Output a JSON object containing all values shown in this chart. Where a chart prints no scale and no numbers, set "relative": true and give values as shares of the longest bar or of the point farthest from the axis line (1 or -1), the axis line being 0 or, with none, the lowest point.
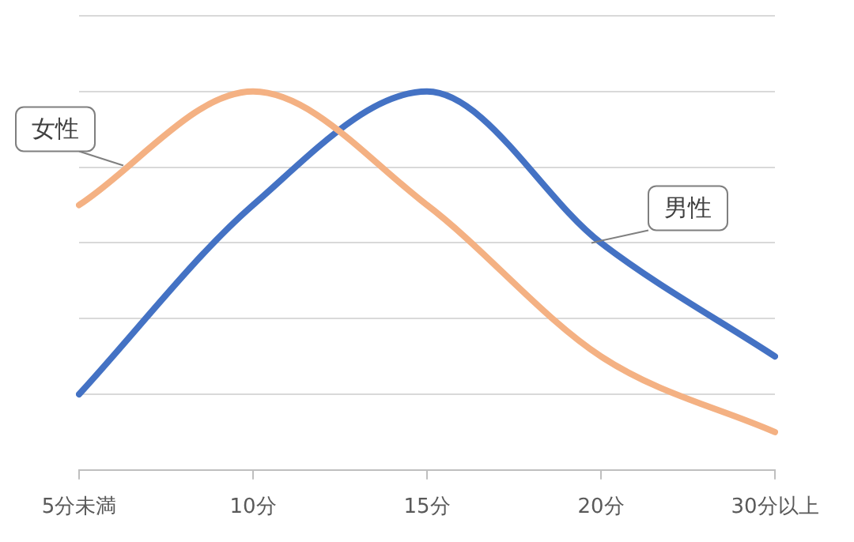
{
  "chart_data": {
    "type": "line",
    "relative": true,
    "categories": [
      "5分未満",
      "10分",
      "15分",
      "20分",
      "30分以上"
    ],
    "series": [
      {
        "name": "女性",
        "color": "#f4b183",
        "values": [
          0.7,
          1,
          0.7,
          0.3,
          0.1
        ]
      },
      {
        "name": "男性",
        "color": "#4472c4",
        "values": [
          0.2,
          0.7,
          1,
          0.6,
          0.3
        ]
      }
    ],
    "grid": "y",
    "legend": false,
    "marker": "none",
    "line_style": "solid"
  }
}
